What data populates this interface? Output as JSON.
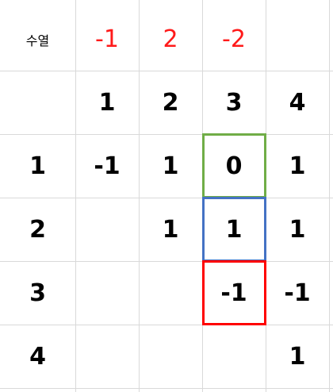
{
  "header": {
    "label": "수열",
    "sequence": [
      "-1",
      "2",
      "-2"
    ]
  },
  "table": {
    "columns": [
      "1",
      "2",
      "3",
      "4"
    ],
    "rows": [
      {
        "label": "1",
        "cells": [
          "-1",
          "1",
          "0",
          "1"
        ]
      },
      {
        "label": "2",
        "cells": [
          "",
          "1",
          "1",
          "1"
        ]
      },
      {
        "label": "3",
        "cells": [
          "",
          "",
          "-1",
          "-1"
        ]
      },
      {
        "label": "4",
        "cells": [
          "",
          "",
          "",
          "1"
        ]
      }
    ]
  },
  "highlight_colors": {
    "green": "#70ad47",
    "blue": "#4472c4",
    "red": "#ff0000"
  }
}
